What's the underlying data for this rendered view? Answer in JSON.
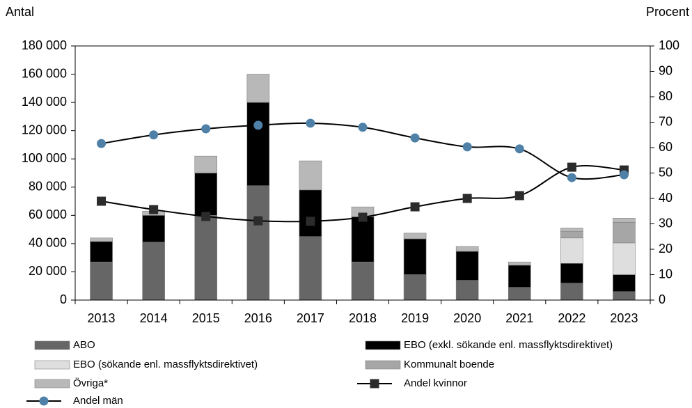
{
  "chart_data": {
    "type": "bar",
    "stacked": true,
    "ylabel": "Antal",
    "y2label": "Procent",
    "categories": [
      "2013",
      "2014",
      "2015",
      "2016",
      "2017",
      "2018",
      "2019",
      "2020",
      "2021",
      "2022",
      "2023"
    ],
    "series": [
      {
        "name": "ABO",
        "color": "#666666",
        "values": [
          27000,
          41000,
          60000,
          81000,
          45000,
          27000,
          18000,
          14000,
          9000,
          12000,
          6000
        ]
      },
      {
        "name": "EBO (exkl. sökande enl. massflyktsdirektivet)",
        "color": "#000000",
        "values": [
          14500,
          19000,
          30000,
          59000,
          33000,
          32000,
          25400,
          20500,
          15700,
          14000,
          12000
        ]
      },
      {
        "name": "EBO (sökande enl. massflyktsdirektivet)",
        "color": "#dedede",
        "values": [
          0,
          0,
          0,
          0,
          0,
          0,
          0,
          0,
          0,
          18000,
          22500
        ]
      },
      {
        "name": "Kommunalt boende",
        "color": "#a6a6a6",
        "values": [
          0,
          0,
          0,
          0,
          0,
          0,
          0,
          0,
          0,
          4500,
          14500
        ]
      },
      {
        "name": "Övriga*",
        "color": "#b8b8b8",
        "values": [
          2500,
          3000,
          12000,
          20000,
          20600,
          7000,
          4000,
          3500,
          2300,
          2500,
          3000
        ]
      },
      {
        "name": "Andel kvinnor",
        "color": "#000000",
        "type": "line",
        "axis": "y2",
        "marker": "square",
        "marker_color": "#2b2b2b",
        "values": [
          38.9,
          35.6,
          32.9,
          31.2,
          31,
          32.6,
          36.7,
          40,
          41.1,
          52.3,
          51.2
        ]
      },
      {
        "name": "Andel män",
        "color": "#000000",
        "type": "line",
        "axis": "y2",
        "marker": "circle",
        "marker_color": "#4f81a8",
        "values": [
          61.6,
          65,
          67.4,
          68.8,
          69.6,
          68,
          63.8,
          60.3,
          59.5,
          48.2,
          49.3
        ]
      }
    ],
    "ylim": [
      0,
      180000
    ],
    "yticks": [
      {
        "value": 0,
        "label": "0"
      },
      {
        "value": 20000,
        "label": "20 000"
      },
      {
        "value": 40000,
        "label": "40 000"
      },
      {
        "value": 60000,
        "label": "60 000"
      },
      {
        "value": 80000,
        "label": "80 000"
      },
      {
        "value": 100000,
        "label": "100 000"
      },
      {
        "value": 120000,
        "label": "120 000"
      },
      {
        "value": 140000,
        "label": "140 000"
      },
      {
        "value": 160000,
        "label": "160 000"
      },
      {
        "value": 180000,
        "label": "180 000"
      }
    ],
    "y2lim": [
      0,
      100
    ],
    "y2ticks": [
      0,
      10,
      20,
      30,
      40,
      50,
      60,
      70,
      80,
      90,
      100
    ],
    "grid": false
  }
}
